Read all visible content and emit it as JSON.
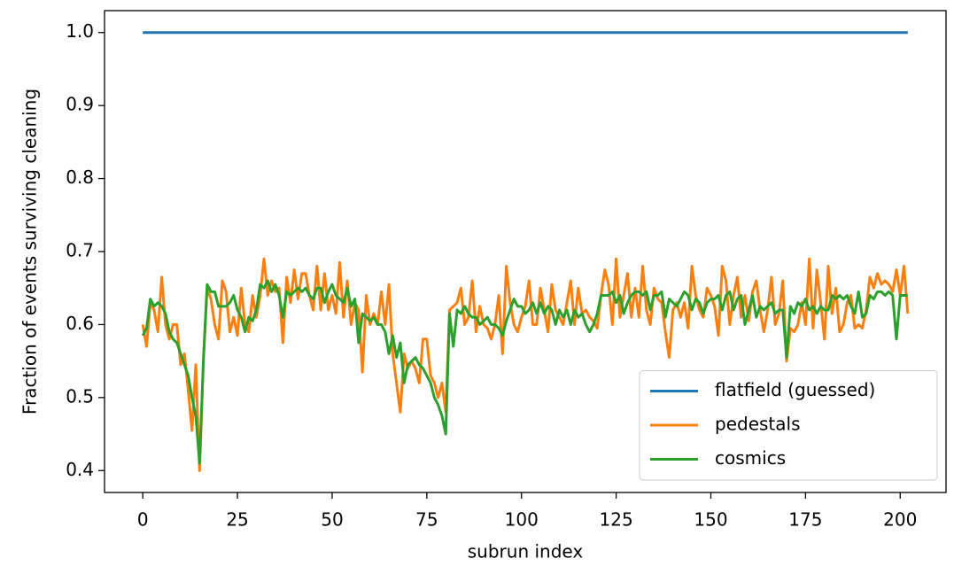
{
  "chart_data": {
    "type": "line",
    "xlabel": "subrun index",
    "ylabel": "Fraction of events surviving cleaning",
    "x": [
      0,
      1,
      2,
      3,
      4,
      5,
      6,
      7,
      8,
      9,
      10,
      11,
      12,
      13,
      14,
      15,
      16,
      17,
      18,
      19,
      20,
      21,
      22,
      23,
      24,
      25,
      26,
      27,
      28,
      29,
      30,
      31,
      32,
      33,
      34,
      35,
      36,
      37,
      38,
      39,
      40,
      41,
      42,
      43,
      44,
      45,
      46,
      47,
      48,
      49,
      50,
      51,
      52,
      53,
      54,
      55,
      56,
      57,
      58,
      59,
      60,
      61,
      62,
      63,
      64,
      65,
      66,
      67,
      68,
      69,
      70,
      71,
      72,
      73,
      74,
      75,
      76,
      77,
      78,
      79,
      80,
      81,
      82,
      83,
      84,
      85,
      86,
      87,
      88,
      89,
      90,
      91,
      92,
      93,
      94,
      95,
      96,
      97,
      98,
      99,
      100,
      101,
      102,
      103,
      104,
      105,
      106,
      107,
      108,
      109,
      110,
      111,
      112,
      113,
      114,
      115,
      116,
      117,
      118,
      119,
      120,
      121,
      122,
      123,
      124,
      125,
      126,
      127,
      128,
      129,
      130,
      131,
      132,
      133,
      134,
      135,
      136,
      137,
      138,
      139,
      140,
      141,
      142,
      143,
      144,
      145,
      146,
      147,
      148,
      149,
      150,
      151,
      152,
      153,
      154,
      155,
      156,
      157,
      158,
      159,
      160,
      161,
      162,
      163,
      164,
      165,
      166,
      167,
      168,
      169,
      170,
      171,
      172,
      173,
      174,
      175,
      176,
      177,
      178,
      179,
      180,
      181,
      182,
      183,
      184,
      185,
      186,
      187,
      188,
      189,
      190,
      191,
      192,
      193,
      194,
      195,
      196,
      197,
      198,
      199,
      200,
      201,
      202
    ],
    "series": [
      {
        "name": "flatfield (guessed)",
        "color": "#1f77b4",
        "values": [
          1,
          1,
          1,
          1,
          1,
          1,
          1,
          1,
          1,
          1,
          1,
          1,
          1,
          1,
          1,
          1,
          1,
          1,
          1,
          1,
          1,
          1,
          1,
          1,
          1,
          1,
          1,
          1,
          1,
          1,
          1,
          1,
          1,
          1,
          1,
          1,
          1,
          1,
          1,
          1,
          1,
          1,
          1,
          1,
          1,
          1,
          1,
          1,
          1,
          1,
          1,
          1,
          1,
          1,
          1,
          1,
          1,
          1,
          1,
          1,
          1,
          1,
          1,
          1,
          1,
          1,
          1,
          1,
          1,
          1,
          1,
          1,
          1,
          1,
          1,
          1,
          1,
          1,
          1,
          1,
          1,
          1,
          1,
          1,
          1,
          1,
          1,
          1,
          1,
          1,
          1,
          1,
          1,
          1,
          1,
          1,
          1,
          1,
          1,
          1,
          1,
          1,
          1,
          1,
          1,
          1,
          1,
          1,
          1,
          1,
          1,
          1,
          1,
          1,
          1,
          1,
          1,
          1,
          1,
          1,
          1,
          1,
          1,
          1,
          1,
          1,
          1,
          1,
          1,
          1,
          1,
          1,
          1,
          1,
          1,
          1,
          1,
          1,
          1,
          1,
          1,
          1,
          1,
          1,
          1,
          1,
          1,
          1,
          1,
          1,
          1,
          1,
          1,
          1,
          1,
          1,
          1,
          1,
          1,
          1,
          1,
          1,
          1,
          1,
          1,
          1,
          1,
          1,
          1,
          1,
          1,
          1,
          1,
          1,
          1,
          1,
          1,
          1,
          1,
          1,
          1,
          1,
          1,
          1,
          1,
          1,
          1,
          1,
          1,
          1,
          1,
          1,
          1,
          1,
          1,
          1,
          1,
          1,
          1,
          1,
          1,
          1,
          1
        ]
      },
      {
        "name": "pedestals",
        "color": "#ff7f0e",
        "values": [
          0.6,
          0.57,
          0.63,
          0.62,
          0.59,
          0.665,
          0.6,
          0.58,
          0.6,
          0.6,
          0.545,
          0.56,
          0.51,
          0.455,
          0.545,
          0.4,
          0.55,
          0.65,
          0.635,
          0.6,
          0.58,
          0.66,
          0.645,
          0.59,
          0.61,
          0.585,
          0.65,
          0.6,
          0.59,
          0.64,
          0.61,
          0.64,
          0.69,
          0.64,
          0.66,
          0.645,
          0.65,
          0.575,
          0.665,
          0.63,
          0.675,
          0.635,
          0.67,
          0.67,
          0.64,
          0.62,
          0.68,
          0.62,
          0.67,
          0.62,
          0.64,
          0.615,
          0.685,
          0.61,
          0.66,
          0.6,
          0.63,
          0.62,
          0.535,
          0.64,
          0.6,
          0.615,
          0.6,
          0.645,
          0.6,
          0.655,
          0.56,
          0.52,
          0.48,
          0.56,
          0.54,
          0.55,
          0.54,
          0.52,
          0.58,
          0.58,
          0.53,
          0.52,
          0.5,
          0.52,
          0.48,
          0.62,
          0.625,
          0.63,
          0.65,
          0.6,
          0.61,
          0.66,
          0.59,
          0.625,
          0.6,
          0.595,
          0.58,
          0.6,
          0.64,
          0.56,
          0.68,
          0.63,
          0.6,
          0.59,
          0.61,
          0.625,
          0.66,
          0.6,
          0.6,
          0.65,
          0.62,
          0.59,
          0.655,
          0.62,
          0.61,
          0.6,
          0.63,
          0.66,
          0.6,
          0.65,
          0.615,
          0.62,
          0.61,
          0.605,
          0.595,
          0.64,
          0.675,
          0.655,
          0.6,
          0.69,
          0.61,
          0.64,
          0.67,
          0.61,
          0.65,
          0.61,
          0.68,
          0.62,
          0.6,
          0.65,
          0.635,
          0.63,
          0.59,
          0.555,
          0.62,
          0.63,
          0.61,
          0.63,
          0.595,
          0.68,
          0.64,
          0.62,
          0.61,
          0.65,
          0.64,
          0.625,
          0.585,
          0.68,
          0.66,
          0.6,
          0.64,
          0.665,
          0.61,
          0.64,
          0.605,
          0.645,
          0.66,
          0.62,
          0.59,
          0.62,
          0.665,
          0.6,
          0.615,
          0.66,
          0.55,
          0.595,
          0.59,
          0.6,
          0.63,
          0.6,
          0.69,
          0.595,
          0.675,
          0.63,
          0.58,
          0.68,
          0.615,
          0.65,
          0.59,
          0.6,
          0.63,
          0.64,
          0.595,
          0.6,
          0.595,
          0.62,
          0.665,
          0.65,
          0.67,
          0.655,
          0.66,
          0.655,
          0.645,
          0.675,
          0.64,
          0.68,
          0.615
        ]
      },
      {
        "name": "cosmics",
        "color": "#2ca02c",
        "values": [
          0.585,
          0.595,
          0.635,
          0.625,
          0.63,
          0.625,
          0.615,
          0.59,
          0.58,
          0.575,
          0.56,
          0.545,
          0.53,
          0.5,
          0.475,
          0.41,
          0.55,
          0.655,
          0.645,
          0.645,
          0.625,
          0.625,
          0.625,
          0.63,
          0.64,
          0.62,
          0.61,
          0.59,
          0.61,
          0.605,
          0.62,
          0.655,
          0.65,
          0.66,
          0.645,
          0.655,
          0.64,
          0.61,
          0.645,
          0.64,
          0.645,
          0.65,
          0.645,
          0.65,
          0.64,
          0.635,
          0.65,
          0.65,
          0.63,
          0.645,
          0.655,
          0.64,
          0.635,
          0.63,
          0.65,
          0.625,
          0.635,
          0.575,
          0.615,
          0.61,
          0.605,
          0.61,
          0.6,
          0.6,
          0.59,
          0.56,
          0.585,
          0.555,
          0.575,
          0.52,
          0.545,
          0.55,
          0.555,
          0.545,
          0.54,
          0.53,
          0.52,
          0.5,
          0.49,
          0.475,
          0.45,
          0.615,
          0.57,
          0.62,
          0.615,
          0.625,
          0.615,
          0.61,
          0.61,
          0.6,
          0.605,
          0.61,
          0.6,
          0.6,
          0.595,
          0.585,
          0.605,
          0.62,
          0.635,
          0.625,
          0.625,
          0.615,
          0.62,
          0.63,
          0.615,
          0.63,
          0.615,
          0.625,
          0.62,
          0.6,
          0.62,
          0.61,
          0.62,
          0.6,
          0.62,
          0.61,
          0.615,
          0.6,
          0.59,
          0.6,
          0.615,
          0.64,
          0.64,
          0.64,
          0.645,
          0.63,
          0.64,
          0.615,
          0.63,
          0.64,
          0.645,
          0.645,
          0.64,
          0.645,
          0.62,
          0.64,
          0.64,
          0.645,
          0.61,
          0.635,
          0.63,
          0.625,
          0.635,
          0.645,
          0.64,
          0.62,
          0.635,
          0.63,
          0.615,
          0.63,
          0.635,
          0.635,
          0.64,
          0.62,
          0.64,
          0.645,
          0.62,
          0.635,
          0.64,
          0.6,
          0.62,
          0.64,
          0.61,
          0.625,
          0.62,
          0.625,
          0.63,
          0.615,
          0.62,
          0.62,
          0.555,
          0.625,
          0.615,
          0.63,
          0.625,
          0.635,
          0.62,
          0.625,
          0.615,
          0.625,
          0.62,
          0.62,
          0.64,
          0.635,
          0.64,
          0.635,
          0.64,
          0.625,
          0.615,
          0.645,
          0.61,
          0.615,
          0.64,
          0.635,
          0.645,
          0.645,
          0.64,
          0.645,
          0.64,
          0.58,
          0.64,
          0.64,
          0.64
        ]
      }
    ],
    "xlim": [
      -10.1,
      212.1
    ],
    "xticks": [
      0,
      25,
      50,
      75,
      100,
      125,
      150,
      175,
      200
    ],
    "ylim": [
      0.37,
      1.03
    ],
    "yticks": [
      0.4,
      0.5,
      0.6,
      0.7,
      0.8,
      0.9,
      {
        "value": 1,
        "label": "1.0"
      }
    ],
    "grid": false,
    "legend": "lower right"
  }
}
